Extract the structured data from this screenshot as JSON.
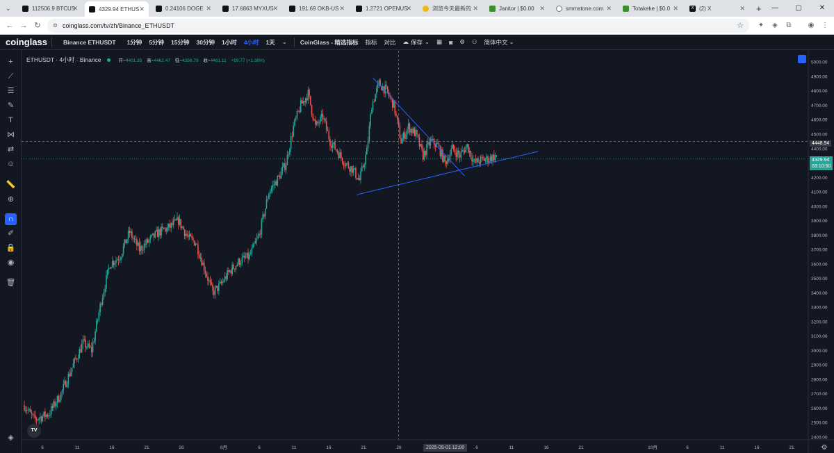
{
  "browser": {
    "tabs": [
      {
        "label": "112506.9 BTCUS",
        "icon": "tradingview-icon"
      },
      {
        "label": "4329.94 ETHUS",
        "icon": "tradingview-icon",
        "active": true
      },
      {
        "label": "0.24106 DOGE",
        "icon": "tradingview-icon"
      },
      {
        "label": "17.6863 MYXUS",
        "icon": "tradingview-icon"
      },
      {
        "label": "191.69 OKB-US",
        "icon": "tradingview-icon"
      },
      {
        "label": "1.2721 OPENUS",
        "icon": "tradingview-icon"
      },
      {
        "label": "浏览今天最新的",
        "icon": "coin-icon"
      },
      {
        "label": "Janitor | $0.00",
        "icon": "leaf-icon"
      },
      {
        "label": "smmstone.com",
        "icon": "globe-icon"
      },
      {
        "label": "Totakeke | $0.0",
        "icon": "leaf-icon"
      },
      {
        "label": "(2) X",
        "icon": "x-icon"
      }
    ],
    "url": "coinglass.com/tv/zh/Binance_ETHUSDT",
    "new_tab": "+"
  },
  "app": {
    "logo": "coinglass",
    "symbol": "Binance ETHUSDT",
    "timeframes": [
      "1分钟",
      "5分钟",
      "15分钟",
      "30分钟",
      "1小时",
      "4小时",
      "1天"
    ],
    "active_timeframe": "4小时",
    "toolbar": {
      "indicators_brand": "CoinGlass - 精选指标",
      "indicators": "指标",
      "compare": "对比",
      "save": "保存",
      "language": "简体中文"
    }
  },
  "legend": {
    "title": "ETHUSDT · 4小时 · Binance",
    "open_label": "开",
    "open": "=4401.35",
    "high_label": "高",
    "high": "=4462.47",
    "low_label": "低",
    "low": "=4356.79",
    "close_label": "收",
    "close": "=4461.11",
    "change": "+59.77 (+1.36%)"
  },
  "price_tags": {
    "crosshair_price": "4448.94",
    "last_price": "4329.94",
    "countdown": "03:10:50"
  },
  "date_flag": "2025-09-01   12:00",
  "colors": {
    "up": "#26a69a",
    "down": "#ef5350",
    "trendline": "#2962ff",
    "background": "#131722"
  },
  "chart_data": {
    "type": "candlestick",
    "y_ticks": [
      "5000.00",
      "4900.00",
      "4800.00",
      "4700.00",
      "4600.00",
      "4500.00",
      "4400.00",
      "4300.00",
      "4200.00",
      "4100.00",
      "4000.00",
      "3900.00",
      "3800.00",
      "3700.00",
      "3600.00",
      "3500.00",
      "3400.00",
      "3300.00",
      "3200.00",
      "3100.00",
      "3000.00",
      "2900.00",
      "2800.00",
      "2700.00",
      "2600.00",
      "2500.00",
      "2400.00"
    ],
    "x_ticks": [
      "6",
      "11",
      "16",
      "21",
      "26",
      "8月",
      "6",
      "11",
      "16",
      "21",
      "26",
      "2025-09-01  12:00",
      "6",
      "11",
      "16",
      "21",
      "10月",
      "6",
      "11",
      "16",
      "21"
    ],
    "ylim": [
      2380,
      5030
    ],
    "trend_path": [
      [
        0,
        2620
      ],
      [
        8,
        2520
      ],
      [
        20,
        2560
      ],
      [
        30,
        2700
      ],
      [
        40,
        2900
      ],
      [
        48,
        3050
      ],
      [
        55,
        3000
      ],
      [
        63,
        3350
      ],
      [
        70,
        3600
      ],
      [
        78,
        3650
      ],
      [
        86,
        3820
      ],
      [
        94,
        3700
      ],
      [
        102,
        3760
      ],
      [
        110,
        3820
      ],
      [
        118,
        3850
      ],
      [
        126,
        3900
      ],
      [
        134,
        3780
      ],
      [
        140,
        3750
      ],
      [
        148,
        3550
      ],
      [
        154,
        3400
      ],
      [
        160,
        3450
      ],
      [
        168,
        3550
      ],
      [
        176,
        3620
      ],
      [
        184,
        3650
      ],
      [
        192,
        3800
      ],
      [
        200,
        4100
      ],
      [
        208,
        4200
      ],
      [
        214,
        4300
      ],
      [
        220,
        4550
      ],
      [
        226,
        4700
      ],
      [
        232,
        4780
      ],
      [
        238,
        4550
      ],
      [
        244,
        4620
      ],
      [
        250,
        4450
      ],
      [
        256,
        4380
      ],
      [
        262,
        4300
      ],
      [
        268,
        4260
      ],
      [
        274,
        4180
      ],
      [
        280,
        4380
      ],
      [
        284,
        4700
      ],
      [
        290,
        4850
      ],
      [
        296,
        4800
      ],
      [
        302,
        4700
      ],
      [
        308,
        4450
      ],
      [
        314,
        4550
      ],
      [
        320,
        4500
      ],
      [
        326,
        4350
      ],
      [
        332,
        4450
      ],
      [
        338,
        4420
      ],
      [
        344,
        4300
      ],
      [
        350,
        4400
      ],
      [
        356,
        4350
      ],
      [
        362,
        4420
      ],
      [
        368,
        4300
      ],
      [
        374,
        4320
      ],
      [
        380,
        4330
      ],
      [
        386,
        4350
      ]
    ],
    "triangle": {
      "upper": {
        "from": [
          285,
          4890
        ],
        "to": [
          360,
          4210
        ]
      },
      "lower": {
        "from": [
          272,
          4080
        ],
        "to": [
          420,
          4380
        ]
      }
    },
    "crosshair": {
      "x": 306,
      "price": 4448.94
    }
  }
}
